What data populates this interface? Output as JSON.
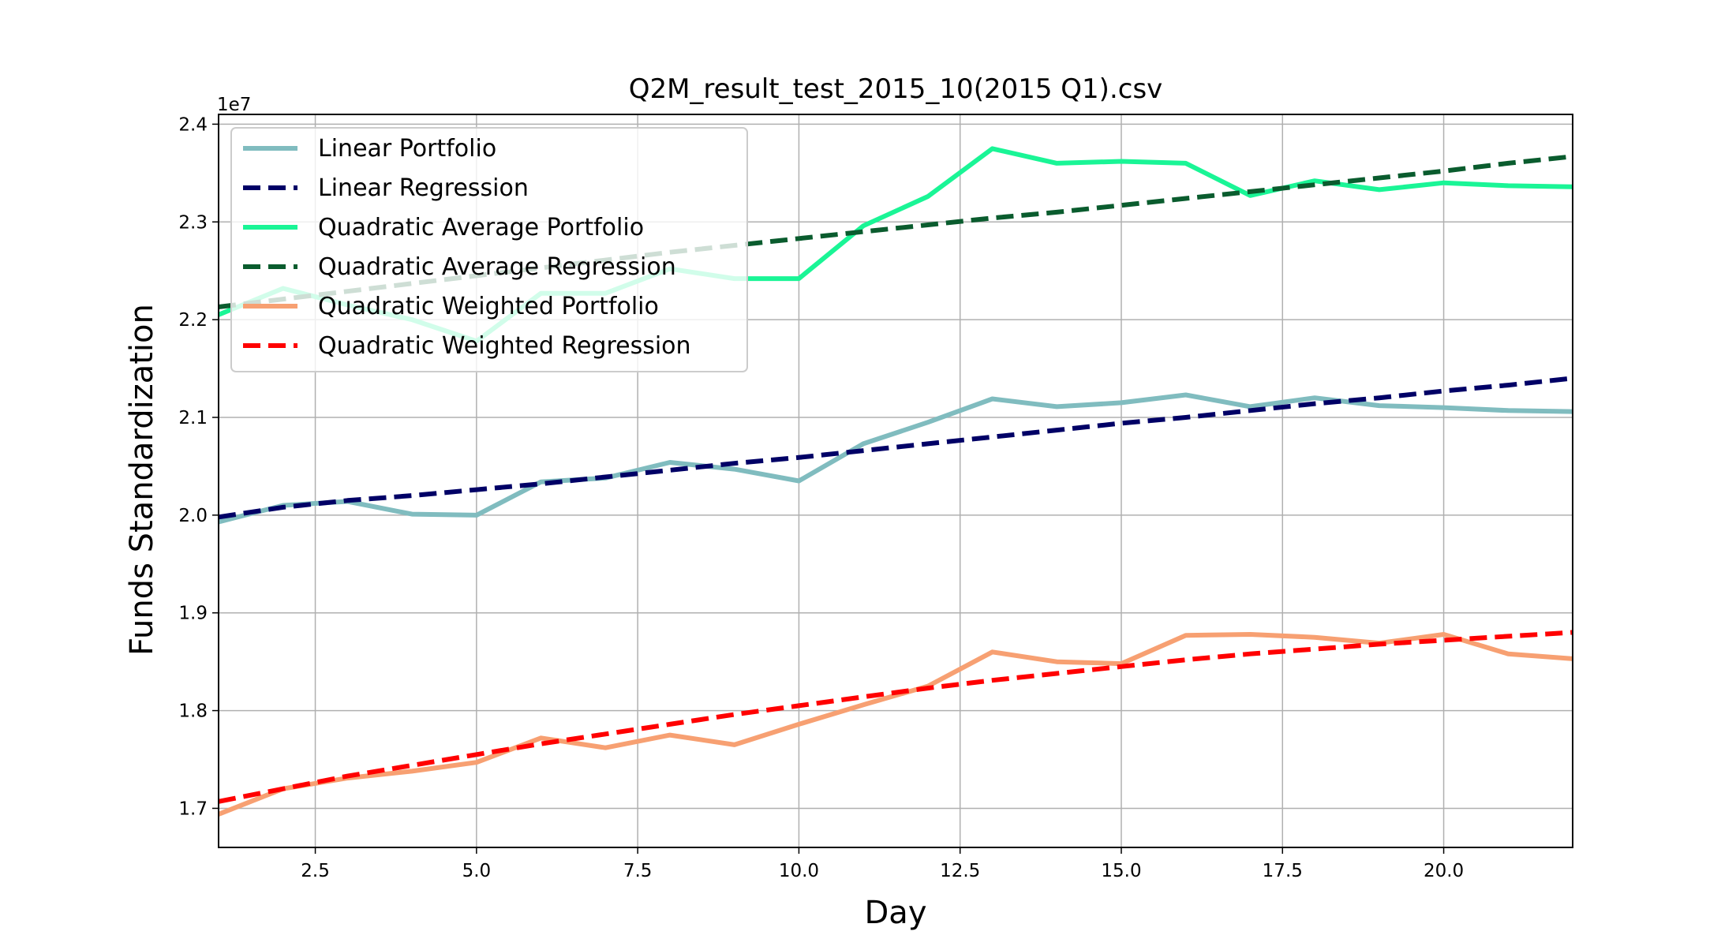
{
  "chart_data": {
    "type": "line",
    "title": "Q2M_result_test_2015_10(2015 Q1).csv",
    "xlabel": "Day",
    "ylabel": "Funds Standardization",
    "y_offset_label": "1e7",
    "xlim": [
      1,
      22
    ],
    "ylim": [
      16600000,
      24100000
    ],
    "xticks": [
      2.5,
      5.0,
      7.5,
      10.0,
      12.5,
      15.0,
      17.5,
      20.0
    ],
    "xtick_labels": [
      "2.5",
      "5.0",
      "7.5",
      "10.0",
      "12.5",
      "15.0",
      "17.5",
      "20.0"
    ],
    "yticks": [
      17000000,
      18000000,
      19000000,
      20000000,
      21000000,
      22000000,
      23000000,
      24000000
    ],
    "ytick_labels": [
      "1.7",
      "1.8",
      "1.9",
      "2.0",
      "2.1",
      "2.2",
      "2.3",
      "2.4"
    ],
    "grid": true,
    "legend_position": "top-left",
    "x": [
      1,
      2,
      3,
      4,
      5,
      6,
      7,
      8,
      9,
      10,
      11,
      12,
      13,
      14,
      15,
      16,
      17,
      18,
      19,
      20,
      21,
      22
    ],
    "series": [
      {
        "name": "Linear Portfolio",
        "style": "solid",
        "color": "#80bcbf",
        "values": [
          19930000,
          20100000,
          20140000,
          20010000,
          20000000,
          20340000,
          20380000,
          20540000,
          20470000,
          20350000,
          20730000,
          20950000,
          21190000,
          21110000,
          21150000,
          21230000,
          21110000,
          21200000,
          21120000,
          21100000,
          21070000,
          21060000
        ]
      },
      {
        "name": "Linear Regression",
        "style": "dashed",
        "color": "#000066",
        "values": [
          19980000,
          20080000,
          20150000,
          20200000,
          20260000,
          20320000,
          20390000,
          20460000,
          20530000,
          20590000,
          20660000,
          20730000,
          20800000,
          20870000,
          20940000,
          21000000,
          21070000,
          21140000,
          21200000,
          21270000,
          21330000,
          21400000
        ]
      },
      {
        "name": "Quadratic Average Portfolio",
        "style": "solid",
        "color": "#1af596",
        "values": [
          22050000,
          22320000,
          22150000,
          22000000,
          21780000,
          22270000,
          22270000,
          22520000,
          22420000,
          22420000,
          22960000,
          23260000,
          23750000,
          23600000,
          23620000,
          23600000,
          23270000,
          23420000,
          23330000,
          23400000,
          23370000,
          23360000
        ]
      },
      {
        "name": "Quadratic Average Regression",
        "style": "dashed",
        "color": "#0a5c2e",
        "values": [
          22130000,
          22210000,
          22290000,
          22370000,
          22450000,
          22530000,
          22610000,
          22690000,
          22760000,
          22830000,
          22900000,
          22970000,
          23040000,
          23100000,
          23170000,
          23240000,
          23310000,
          23380000,
          23450000,
          23520000,
          23600000,
          23670000
        ]
      },
      {
        "name": "Quadratic Weighted Portfolio",
        "style": "solid",
        "color": "#f7a072",
        "values": [
          16940000,
          17200000,
          17310000,
          17380000,
          17470000,
          17720000,
          17620000,
          17750000,
          17650000,
          17860000,
          18060000,
          18250000,
          18600000,
          18500000,
          18480000,
          18770000,
          18780000,
          18750000,
          18690000,
          18780000,
          18580000,
          18530000
        ]
      },
      {
        "name": "Quadratic Weighted Regression",
        "style": "dashed",
        "color": "#ff0000",
        "values": [
          17070000,
          17200000,
          17330000,
          17440000,
          17550000,
          17660000,
          17760000,
          17860000,
          17960000,
          18050000,
          18140000,
          18230000,
          18310000,
          18380000,
          18450000,
          18520000,
          18580000,
          18630000,
          18680000,
          18720000,
          18760000,
          18800000
        ]
      }
    ]
  }
}
